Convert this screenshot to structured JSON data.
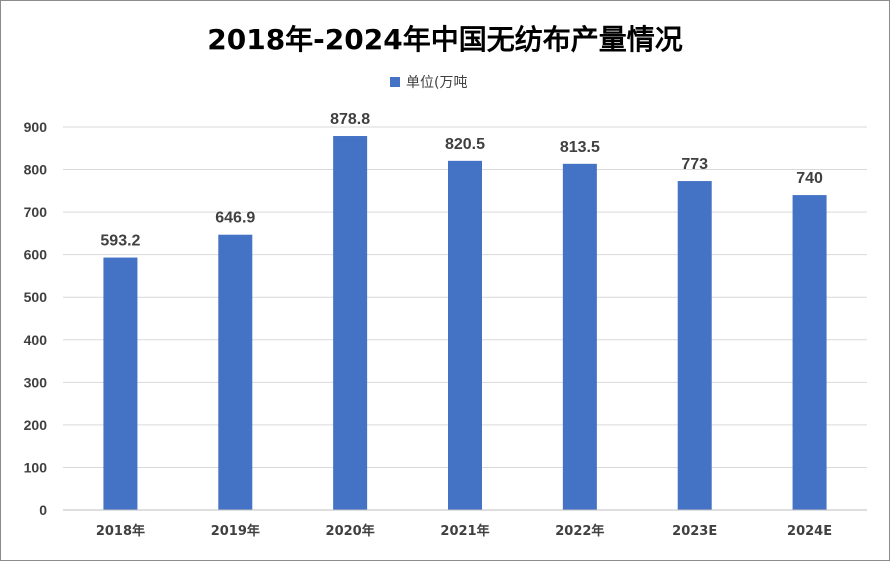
{
  "chart_data": {
    "type": "bar",
    "title": "2018年-2024年中国无纺布产量情况",
    "categories": [
      "2018年",
      "2019年",
      "2020年",
      "2021年",
      "2022年",
      "2023E",
      "2024E"
    ],
    "series": [
      {
        "name": "单位(万吨",
        "values": [
          593.2,
          646.9,
          878.8,
          820.5,
          813.5,
          773,
          740
        ]
      }
    ],
    "data_labels": [
      "593.2",
      "646.9",
      "878.8",
      "820.5",
      "813.5",
      "773",
      "740"
    ],
    "ylim": [
      0,
      900
    ],
    "yticks": [
      0,
      100,
      200,
      300,
      400,
      500,
      600,
      700,
      800,
      900
    ],
    "grid": true,
    "legend_position": "top",
    "bar_color": "#4472c4"
  }
}
